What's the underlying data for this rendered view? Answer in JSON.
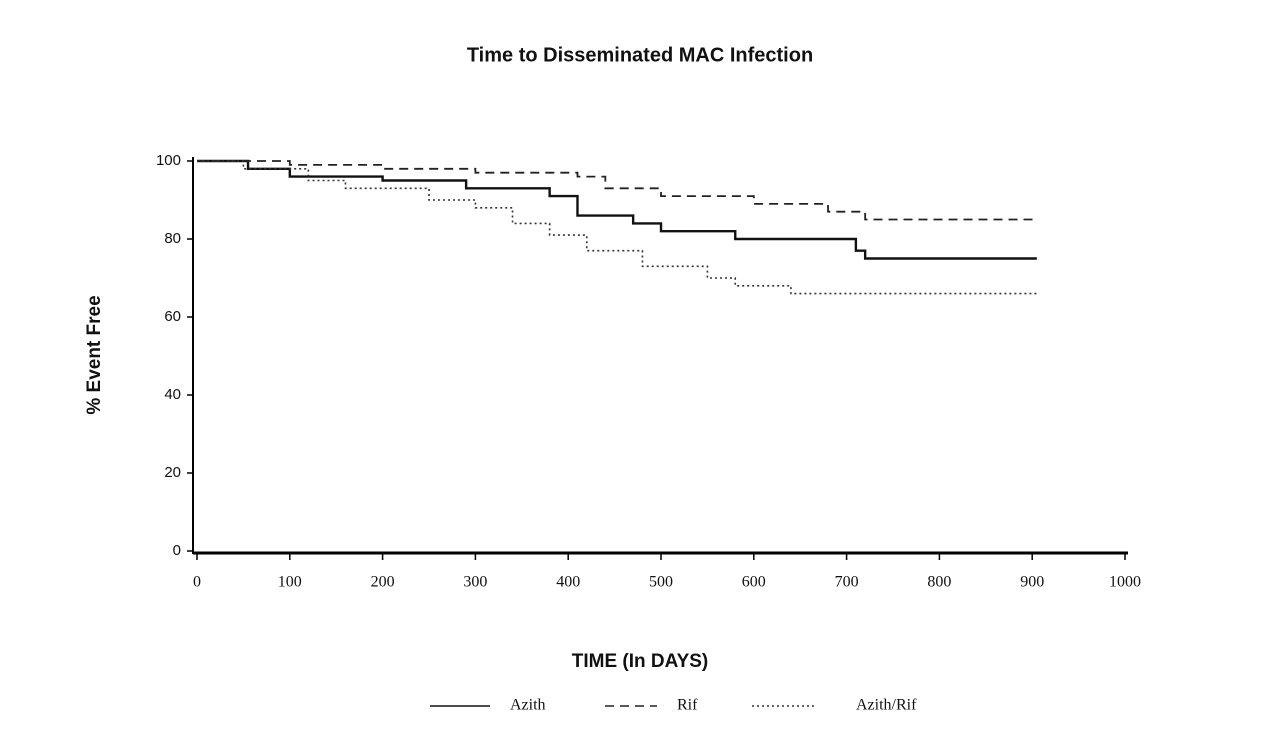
{
  "chart_data": {
    "type": "line",
    "title": "Time to Disseminated MAC Infection",
    "x_label": "TIME (In DAYS)",
    "y_label": "% Event Free",
    "xlim": [
      0,
      1000
    ],
    "xticks": [
      0,
      100,
      200,
      300,
      400,
      500,
      600,
      700,
      800,
      900,
      1000
    ],
    "ylim": [
      0,
      100
    ],
    "yticks": [
      0,
      20,
      40,
      60,
      80,
      100
    ],
    "grid": false,
    "series": [
      {
        "name": "Azith",
        "color": "#111111",
        "line_style": "solid",
        "x": [
          0,
          55,
          55,
          100,
          100,
          200,
          200,
          290,
          290,
          380,
          380,
          410,
          410,
          470,
          470,
          500,
          500,
          580,
          580,
          710,
          710,
          720,
          720,
          905
        ],
        "values": [
          100,
          100,
          98,
          98,
          96,
          96,
          95,
          95,
          93,
          93,
          91,
          91,
          86,
          86,
          84,
          84,
          82,
          82,
          80,
          80,
          77,
          77,
          75,
          75
        ]
      },
      {
        "name": "Rif",
        "color": "#222222",
        "line_style": "dashed",
        "x": [
          0,
          100,
          100,
          200,
          200,
          300,
          300,
          410,
          410,
          440,
          440,
          500,
          500,
          600,
          600,
          680,
          680,
          720,
          720,
          905
        ],
        "values": [
          100,
          100,
          99,
          99,
          98,
          98,
          97,
          97,
          96,
          96,
          93,
          93,
          91,
          91,
          89,
          89,
          87,
          87,
          85,
          85
        ]
      },
      {
        "name": "Azith/Rif",
        "color": "#333333",
        "line_style": "dotted",
        "x": [
          0,
          50,
          50,
          120,
          120,
          160,
          160,
          250,
          250,
          300,
          300,
          340,
          340,
          380,
          380,
          420,
          420,
          480,
          480,
          550,
          550,
          580,
          580,
          640,
          640,
          905
        ],
        "values": [
          100,
          100,
          98,
          98,
          95,
          95,
          93,
          93,
          90,
          90,
          88,
          88,
          84,
          84,
          81,
          81,
          77,
          77,
          73,
          73,
          70,
          70,
          68,
          68,
          66,
          66
        ]
      }
    ]
  }
}
